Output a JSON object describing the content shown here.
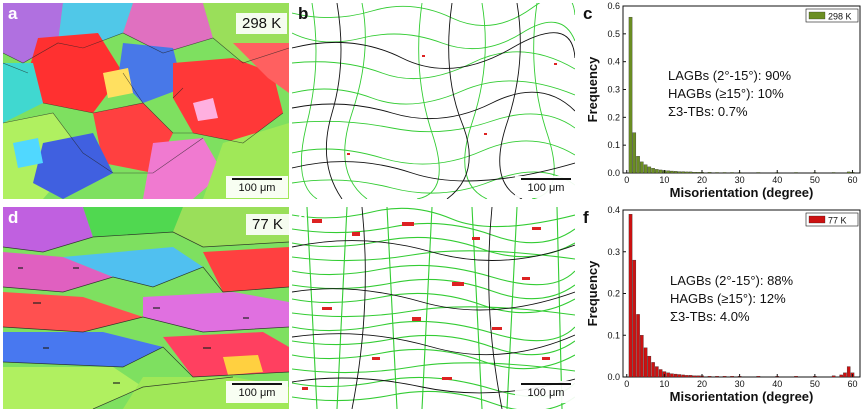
{
  "panels": {
    "a": {
      "label": "a",
      "temp": "298 K",
      "scale": "100 μm"
    },
    "b": {
      "label": "b",
      "scale": "100 μm"
    },
    "c": {
      "label": "c"
    },
    "d": {
      "label": "d",
      "temp": "77 K",
      "scale": "100 μm"
    },
    "e": {
      "label": "e",
      "scale": "100 μm"
    },
    "f": {
      "label": "f"
    }
  },
  "chart_data": [
    {
      "type": "bar",
      "panel": "c",
      "legend": "298 K",
      "legend_position": "top-right",
      "color": "#6b8e23",
      "xlabel": "Misorientation (degree)",
      "ylabel": "Frequency",
      "xlim": [
        -1,
        62
      ],
      "ylim": [
        0,
        0.6
      ],
      "xticks": [
        0,
        10,
        20,
        30,
        40,
        50,
        60
      ],
      "yticks": [
        0.0,
        0.1,
        0.2,
        0.3,
        0.4,
        0.5,
        0.6
      ],
      "x": [
        1,
        2,
        3,
        4,
        5,
        6,
        7,
        8,
        9,
        10,
        11,
        12,
        13,
        14,
        15,
        16,
        17,
        18,
        19,
        20,
        22,
        24,
        26,
        28,
        30,
        35,
        40,
        45,
        50,
        55,
        59,
        60
      ],
      "values": [
        0.56,
        0.145,
        0.06,
        0.04,
        0.03,
        0.022,
        0.017,
        0.013,
        0.011,
        0.009,
        0.008,
        0.007,
        0.006,
        0.005,
        0.005,
        0.004,
        0.004,
        0.003,
        0.003,
        0.003,
        0.003,
        0.002,
        0.002,
        0.002,
        0.002,
        0.002,
        0.002,
        0.002,
        0.002,
        0.002,
        0.004,
        0.003
      ],
      "annotations": [
        "LAGBs (2°-15°): 90%",
        "HAGBs (≥15°): 10%",
        "Σ3-TBs: 0.7%"
      ]
    },
    {
      "type": "bar",
      "panel": "f",
      "legend": "77 K",
      "legend_position": "top-right",
      "color": "#cc1111",
      "xlabel": "Misorientation (degree)",
      "ylabel": "Frequency",
      "xlim": [
        -1,
        62
      ],
      "ylim": [
        0,
        0.4
      ],
      "xticks": [
        0,
        10,
        20,
        30,
        40,
        50,
        60
      ],
      "yticks": [
        0.0,
        0.1,
        0.2,
        0.3,
        0.4
      ],
      "x": [
        1,
        2,
        3,
        4,
        5,
        6,
        7,
        8,
        9,
        10,
        11,
        12,
        13,
        14,
        15,
        16,
        17,
        18,
        19,
        20,
        22,
        24,
        26,
        28,
        30,
        35,
        40,
        45,
        50,
        55,
        57,
        58,
        59,
        60
      ],
      "values": [
        0.39,
        0.28,
        0.15,
        0.1,
        0.07,
        0.05,
        0.035,
        0.025,
        0.018,
        0.013,
        0.01,
        0.008,
        0.007,
        0.006,
        0.005,
        0.004,
        0.004,
        0.003,
        0.003,
        0.003,
        0.002,
        0.002,
        0.002,
        0.002,
        0.002,
        0.002,
        0.002,
        0.002,
        0.002,
        0.003,
        0.005,
        0.01,
        0.025,
        0.01
      ],
      "annotations": [
        "LAGBs (2°-15°): 88%",
        "HAGBs (≥15°): 12%",
        "Σ3-TBs: 4.0%"
      ]
    }
  ]
}
